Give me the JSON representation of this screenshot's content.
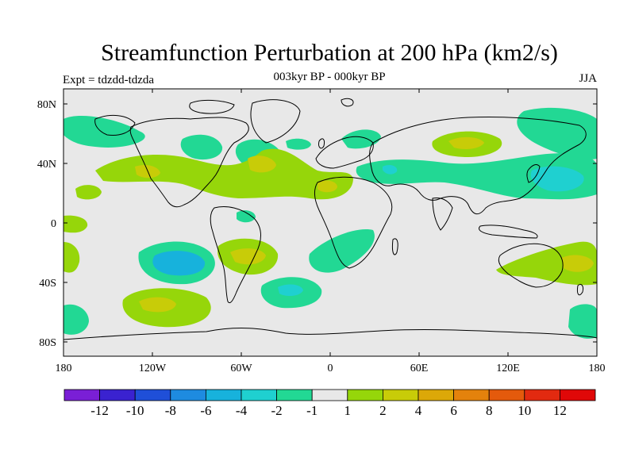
{
  "title": "Streamfunction Perturbation at 200 hPa (km2/s)",
  "subtitle": "003kyr BP - 000kyr BP",
  "left_label": "Expt = tdzdd-tdzda",
  "right_label": "JJA",
  "map": {
    "lat_ticks": [
      "80N",
      "40N",
      "0",
      "40S",
      "80S"
    ],
    "lon_ticks": [
      "180",
      "120W",
      "60W",
      "0",
      "60E",
      "120E",
      "180"
    ]
  },
  "colorbar": {
    "labels": [
      "-12",
      "-10",
      "-8",
      "-6",
      "-4",
      "-2",
      "-1",
      "1",
      "2",
      "4",
      "6",
      "8",
      "10",
      "12"
    ],
    "colors": [
      "#7a1fd6",
      "#3a22d0",
      "#1f4fd8",
      "#1e8be0",
      "#17b2dc",
      "#1fd0d0",
      "#22d894",
      "#e8e8e8",
      "#96d60a",
      "#c8cc08",
      "#dca808",
      "#e4820c",
      "#e45a0c",
      "#e22a10",
      "#e00808"
    ]
  },
  "colors": {
    "land_outline": "#000000",
    "background": "#e8e8e8"
  }
}
